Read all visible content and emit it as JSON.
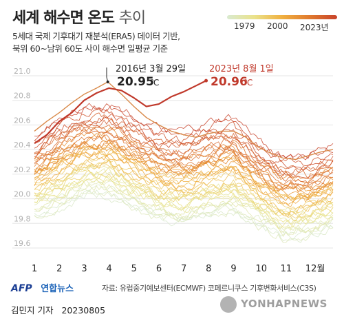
{
  "header": {
    "title": "세계 해수면 온도",
    "title_suffix": "추이",
    "subtitle_line1": "5세대 국제 기후대기 재분석(ERA5) 데이터 기반,",
    "subtitle_line2": "북위 60~남위 60도 사이 해수면 일평균 기준"
  },
  "legend": {
    "start_label": "1979",
    "mid_label": "2000",
    "end_label": "2023년",
    "colors": [
      "#d9ead0",
      "#eae28a",
      "#f0b040",
      "#e07a2e",
      "#c8432b"
    ]
  },
  "annotations": {
    "peak_2016_date": "2016년 3월 29일",
    "peak_2016_value": "20.95",
    "peak_2023_date": "2023년 8월 1일",
    "peak_2023_value": "20.96",
    "unit": "℃"
  },
  "chart_data": {
    "type": "line",
    "title": "세계 해수면 온도 추이",
    "x_tick_labels": [
      "1",
      "2",
      "3",
      "4",
      "5",
      "6",
      "7",
      "8",
      "9",
      "10",
      "11",
      "12월"
    ],
    "y_tick_labels": [
      "19.6",
      "19.8",
      "20.0",
      "20.2",
      "20.4",
      "20.6",
      "20.8",
      "21.0"
    ],
    "ylim": [
      19.6,
      21.0
    ],
    "xlim": [
      1,
      13
    ],
    "grid": true,
    "legend_position": "top-right",
    "series": [
      {
        "name": "2023년",
        "x": [
          1,
          1.5,
          2,
          2.5,
          3,
          3.5,
          4,
          4.5,
          5,
          5.5,
          6,
          6.5,
          7,
          7.5,
          7.9
        ],
        "y": [
          20.45,
          20.52,
          20.63,
          20.7,
          20.8,
          20.86,
          20.9,
          20.88,
          20.82,
          20.75,
          20.77,
          20.83,
          20.87,
          20.92,
          20.96
        ]
      },
      {
        "name": "2016",
        "x": [
          1,
          1.5,
          2,
          2.5,
          3,
          3.5,
          3.95,
          4.5,
          5,
          5.5,
          6,
          6.5,
          7,
          7.5,
          8,
          8.5,
          9,
          9.5,
          10,
          10.5,
          11,
          11.5,
          12,
          12.5,
          13
        ],
        "y": [
          20.55,
          20.63,
          20.7,
          20.78,
          20.85,
          20.9,
          20.95,
          20.85,
          20.75,
          20.66,
          20.6,
          20.55,
          20.52,
          20.5,
          20.53,
          20.55,
          20.55,
          20.5,
          20.42,
          20.37,
          20.33,
          20.32,
          20.35,
          20.38,
          20.4
        ]
      }
    ],
    "climatology_envelope": {
      "x": [
        1,
        2,
        3,
        4,
        5,
        6,
        7,
        8,
        9,
        10,
        11,
        12,
        13
      ],
      "y_top_recent": [
        20.45,
        20.6,
        20.7,
        20.72,
        20.62,
        20.5,
        20.48,
        20.55,
        20.6,
        20.42,
        20.3,
        20.3,
        20.38
      ],
      "y_bottom_early": [
        19.88,
        19.95,
        20.05,
        20.05,
        19.95,
        19.85,
        19.82,
        19.88,
        19.92,
        19.8,
        19.7,
        19.72,
        19.8
      ]
    }
  },
  "footer": {
    "logo_afp": "AFP",
    "logo_yna": "연합뉴스",
    "source": "자료: 유럽중기예보센터(ECMWF) 코페르니쿠스 기후변화서비스(C3S)",
    "reporter": "김민지 기자",
    "date": "20230805",
    "watermark": "YONHAPNEWS"
  }
}
